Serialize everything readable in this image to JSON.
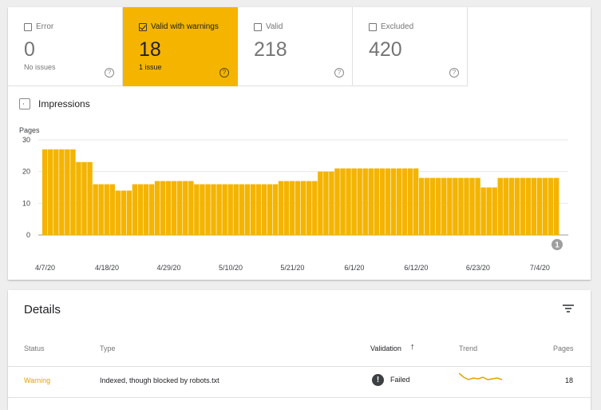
{
  "tiles": [
    {
      "label": "Error",
      "value": "0",
      "sub": "No issues",
      "checked": false
    },
    {
      "label": "Valid with warnings",
      "value": "18",
      "sub": "1 issue",
      "checked": true
    },
    {
      "label": "Valid",
      "value": "218",
      "sub": "",
      "checked": false
    },
    {
      "label": "Excluded",
      "value": "420",
      "sub": "",
      "checked": false
    }
  ],
  "help_glyph": "?",
  "impressions": {
    "label": "Impressions",
    "checked": false
  },
  "annotation_marker": "1",
  "colors": {
    "accent": "#f4b400",
    "bar": "#f4b400",
    "warning_text": "#e6a100"
  },
  "chart_data": {
    "type": "bar",
    "ylabel": "Pages",
    "ylim": [
      0,
      30
    ],
    "yticks": [
      0,
      10,
      20,
      30
    ],
    "xticks": [
      "4/7/20",
      "4/18/20",
      "4/29/20",
      "5/10/20",
      "5/21/20",
      "6/1/20",
      "6/12/20",
      "6/23/20",
      "7/4/20"
    ],
    "grid": true,
    "start_date": "2020-04-07",
    "values": [
      27,
      27,
      27,
      27,
      27,
      27,
      23,
      23,
      23,
      16,
      16,
      16,
      16,
      14,
      14,
      14,
      16,
      16,
      16,
      16,
      17,
      17,
      17,
      17,
      17,
      17,
      17,
      16,
      16,
      16,
      16,
      16,
      16,
      16,
      16,
      16,
      16,
      16,
      16,
      16,
      16,
      16,
      17,
      17,
      17,
      17,
      17,
      17,
      17,
      20,
      20,
      20,
      21,
      21,
      21,
      21,
      21,
      21,
      21,
      21,
      21,
      21,
      21,
      21,
      21,
      21,
      21,
      18,
      18,
      18,
      18,
      18,
      18,
      18,
      18,
      18,
      18,
      18,
      15,
      15,
      15,
      18,
      18,
      18,
      18,
      18,
      18,
      18,
      18,
      18,
      18,
      18
    ]
  },
  "details": {
    "title": "Details",
    "columns": {
      "status": "Status",
      "type": "Type",
      "validation": "Validation",
      "sort_arrow": "↑",
      "trend": "Trend",
      "pages": "Pages"
    },
    "rows": [
      {
        "status": "Warning",
        "type": "Indexed, though blocked by robots.txt",
        "validation_icon": "!",
        "validation": "Failed",
        "pages": "18"
      }
    ]
  }
}
